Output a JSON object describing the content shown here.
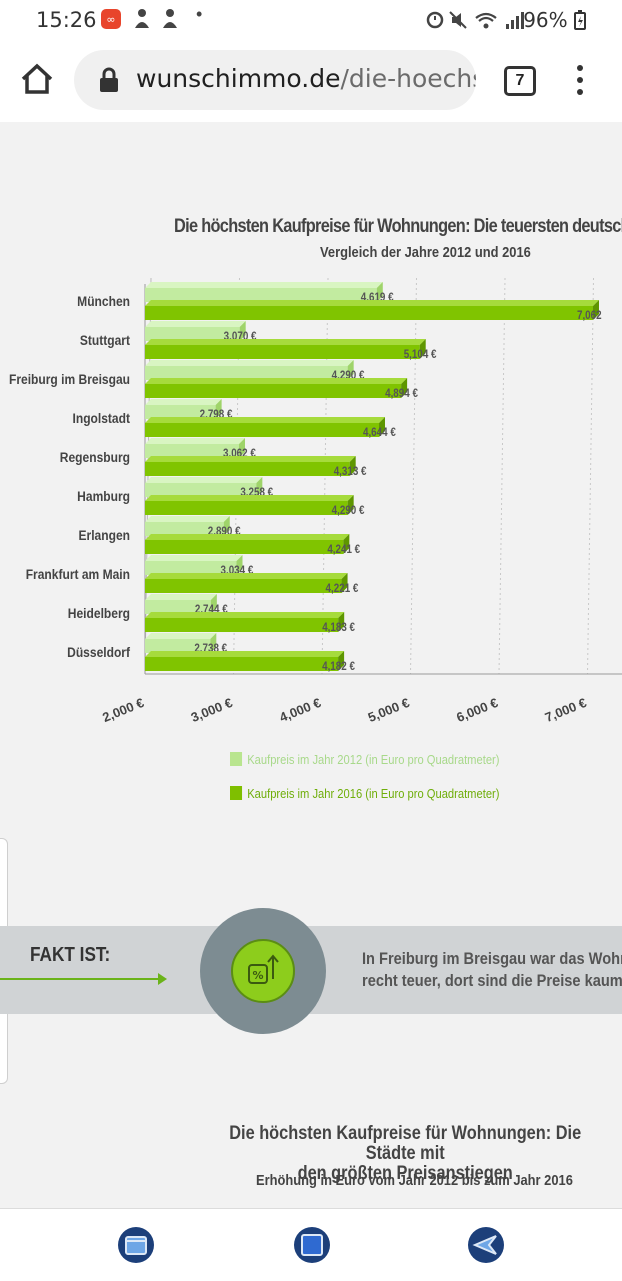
{
  "status_bar": {
    "time": "15:26",
    "battery": "96%",
    "notification_icons": [
      "infinity-app-icon",
      "person-icon",
      "person-icon"
    ],
    "system_icons": [
      "alarm-icon",
      "mute-icon",
      "wifi-icon",
      "signal-icon",
      "battery-icon"
    ]
  },
  "browser": {
    "url_domain": "wunschimmo.de",
    "url_path": "/die-hoechs",
    "tab_count": "7"
  },
  "chart_title": "Die höchsten Kaufpreise für Wohnungen: Die teuersten deutschen S",
  "chart_subtitle": "Vergleich der Jahre 2012 und 2016",
  "chart_data": {
    "type": "bar",
    "orientation": "horizontal",
    "title": "Die höchsten Kaufpreise für Wohnungen: Die teuersten deutschen S",
    "subtitle": "Vergleich der Jahre 2012 und 2016",
    "categories": [
      "München",
      "Stuttgart",
      "Freiburg im Breisgau",
      "Ingolstadt",
      "Regensburg",
      "Hamburg",
      "Erlangen",
      "Frankfurt am Main",
      "Heidelberg",
      "Düsseldorf"
    ],
    "series": [
      {
        "name": "Kaufpreis im Jahr 2012 (in Euro pro Quadratmeter)",
        "color": "#b9e58f",
        "values": [
          4619,
          3070,
          4290,
          2798,
          3062,
          3258,
          2890,
          3034,
          2744,
          2738
        ],
        "labels": [
          "4,619 €",
          "3,070 €",
          "4,290 €",
          "2,798 €",
          "3,062 €",
          "3,258 €",
          "2,890 €",
          "3,034 €",
          "2,744 €",
          "2,738 €"
        ]
      },
      {
        "name": "Kaufpreis im Jahr 2016 (in Euro pro Quadratmeter)",
        "color": "#7fbf00",
        "values": [
          7062,
          5104,
          4894,
          4644,
          4313,
          4290,
          4241,
          4221,
          4183,
          4182
        ],
        "labels": [
          "7,062",
          "5,104 €",
          "4,894 €",
          "4,644 €",
          "4,313 €",
          "4,290 €",
          "4,241 €",
          "4,221 €",
          "4,183 €",
          "4,182 €"
        ]
      }
    ],
    "xlim": [
      2000,
      7400
    ],
    "x_ticks": [
      "2,000 €",
      "3,000 €",
      "4,000 €",
      "5,000 €",
      "6,000 €",
      "7,000 €"
    ],
    "grid": true,
    "legend_position": "bottom"
  },
  "fakt": {
    "label": "FAKT IST:",
    "line1": "In Freiburg im Breisgau war das Wohne",
    "line2": "recht teuer, dort sind die Preise kaum"
  },
  "chart2": {
    "title_line1": "Die höchsten Kaufpreise für Wohnungen: Die Städte mit",
    "title_line2": "den größten Preisanstiegen",
    "subtitle": "Erhöhung in Euro vom Jahr 2012 bis zum Jahr 2016"
  }
}
